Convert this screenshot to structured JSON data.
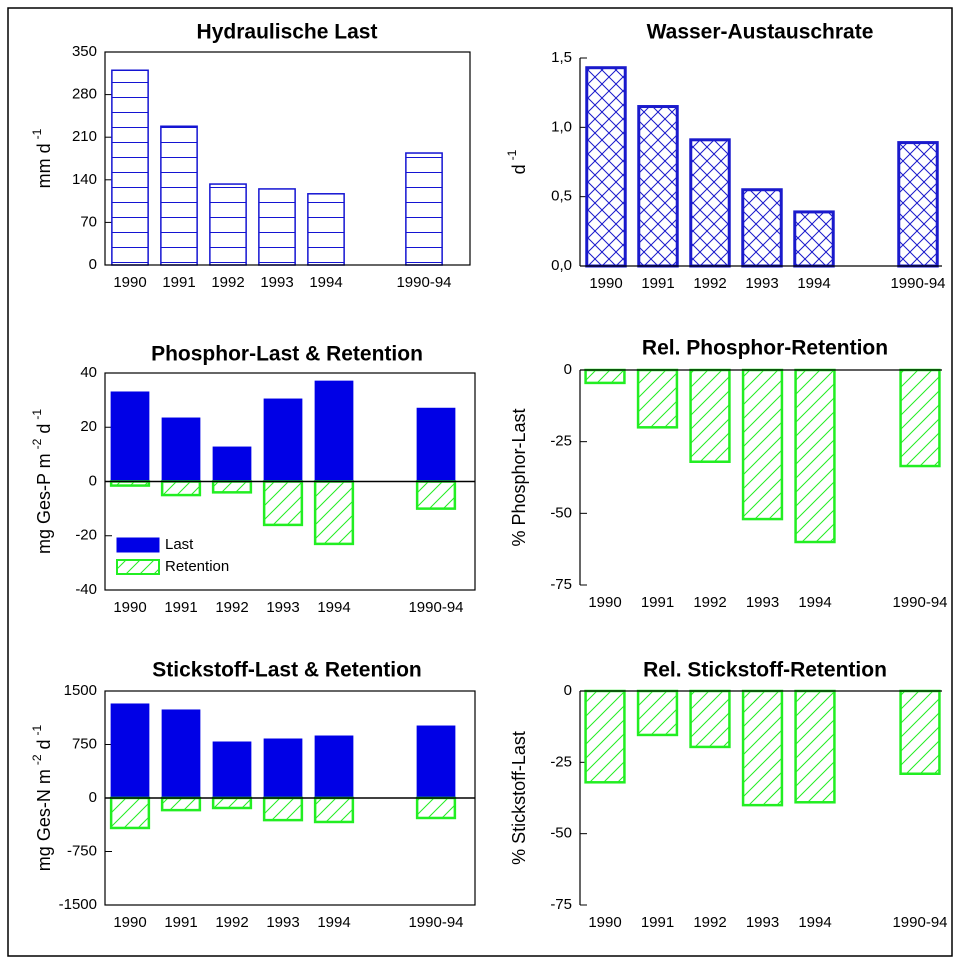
{
  "chart_data": [
    {
      "type": "bar",
      "title": "Hydraulische Last",
      "y_label": [
        "mm d",
        "-1"
      ],
      "frame": "box",
      "categories": [
        "1990",
        "1991",
        "1992",
        "1993",
        "1994",
        null,
        "1990-94"
      ],
      "values": [
        320,
        228,
        133,
        125,
        117,
        null,
        184
      ],
      "color": "#1414d2",
      "hatch": "horizontal",
      "ylim": [
        0,
        350
      ],
      "yticks": [
        0,
        70,
        140,
        210,
        280,
        350
      ]
    },
    {
      "type": "bar",
      "title": "Wasser-Austauschrate",
      "y_label": [
        "d",
        "-1"
      ],
      "frame": "axes",
      "categories": [
        "1990",
        "1991",
        "1992",
        "1993",
        "1994",
        null,
        "1990-94"
      ],
      "values": [
        1.43,
        1.15,
        0.91,
        0.55,
        0.39,
        null,
        0.89
      ],
      "color": "#1a1acc",
      "hatch": "cross",
      "ylim": [
        0,
        1.5
      ],
      "yticks": [
        {
          "value": 0,
          "label": "0,0"
        },
        {
          "value": 0.5,
          "label": "0,5"
        },
        {
          "value": 1,
          "label": "1,0"
        },
        {
          "value": 1.5,
          "label": "1,5"
        }
      ]
    },
    {
      "type": "bar",
      "title": "Phosphor-Last & Retention",
      "y_label": [
        "mg Ges-P m",
        "-2",
        " d",
        "-1"
      ],
      "frame": "box",
      "categories": [
        "1990",
        "1991",
        "1992",
        "1993",
        "1994",
        null,
        "1990-94"
      ],
      "series": [
        {
          "name": "Last",
          "color": "#0000e6",
          "values": [
            33,
            23.4,
            12.7,
            30.4,
            37,
            null,
            27
          ]
        },
        {
          "name": "Retention",
          "color": "#22ee22",
          "hatch": "diagonal",
          "values": [
            -1.5,
            -5,
            -4,
            -16,
            -23,
            null,
            -10
          ]
        }
      ],
      "legend": "lower left",
      "ylim": [
        -40,
        40
      ],
      "yticks": [
        -40,
        -20,
        0,
        20,
        40
      ]
    },
    {
      "type": "bar",
      "title": "Rel. Phosphor-Retention",
      "y_label": [
        "% Phosphor-Last"
      ],
      "frame": "axes",
      "categories": [
        "1990",
        "1991",
        "1992",
        "1993",
        "1994",
        null,
        "1990-94"
      ],
      "values": [
        -4.5,
        -20,
        -32,
        -52,
        -60,
        null,
        -33.5
      ],
      "color": "#22ee22",
      "hatch": "diagonal",
      "ylim": [
        -75,
        0
      ],
      "yticks": [
        -75,
        -50,
        -25,
        0
      ]
    },
    {
      "type": "bar",
      "title": "Stickstoff-Last & Retention",
      "y_label": [
        "mg Ges-N m",
        "-2",
        " d",
        "-1"
      ],
      "frame": "box",
      "categories": [
        "1990",
        "1991",
        "1992",
        "1993",
        "1994",
        null,
        "1990-94"
      ],
      "series": [
        {
          "name": "Last",
          "color": "#0000e6",
          "values": [
            1318,
            1234,
            785,
            827,
            869,
            null,
            1009
          ]
        },
        {
          "name": "Retention",
          "color": "#22ee22",
          "hatch": "diagonal",
          "values": [
            -420,
            -170,
            -140,
            -310,
            -336,
            null,
            -280
          ]
        }
      ],
      "ylim": [
        -1500,
        1500
      ],
      "yticks": [
        -1500,
        -750,
        0,
        750,
        1500
      ]
    },
    {
      "type": "bar",
      "title": "Rel. Stickstoff-Retention",
      "y_label": [
        "% Stickstoff-Last"
      ],
      "frame": "axes",
      "categories": [
        "1990",
        "1991",
        "1992",
        "1993",
        "1994",
        null,
        "1990-94"
      ],
      "values": [
        -32,
        -15.4,
        -19.6,
        -40,
        -39,
        null,
        -29
      ],
      "color": "#22ee22",
      "hatch": "diagonal",
      "ylim": [
        -75,
        0
      ],
      "yticks": [
        -75,
        -50,
        -25,
        0
      ]
    }
  ]
}
